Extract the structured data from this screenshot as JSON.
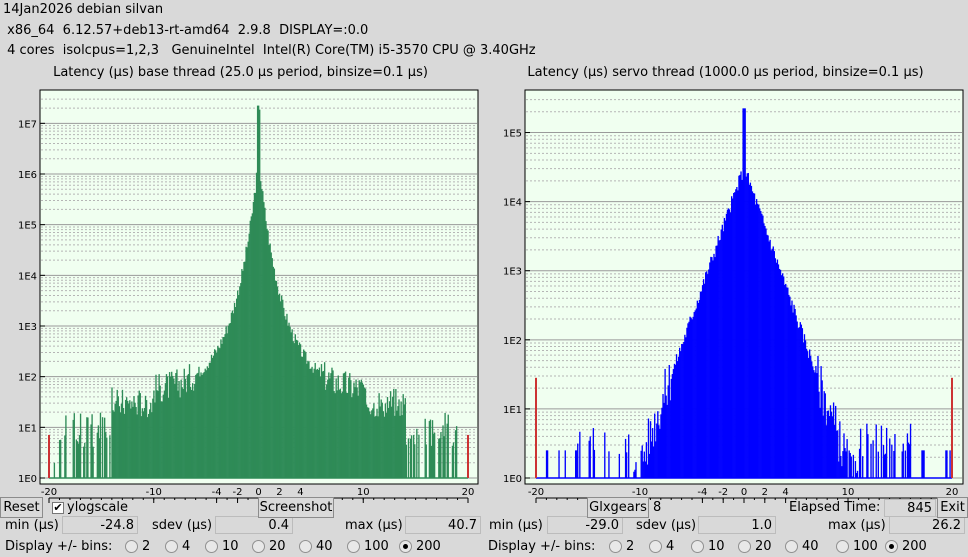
{
  "header": {
    "line1": "14Jan2026 debian silvan",
    "line2": " x86_64  6.12.57+deb13-rt-amd64  2.9.8  DISPLAY=:0.0",
    "line3": " 4 cores  isolcpus=1,2,3   GenuineIntel  Intel(R) Core(TM) i5-3570 CPU @ 3.40GHz"
  },
  "panels": [
    {
      "title": "Latency (µs) base thread (25.0 µs period, binsize=0.1 µs)",
      "min_label": "min (µs)",
      "min_value": "-24.8",
      "sdev_label": "sdev (µs)",
      "sdev_value": "0.4",
      "max_label": "max (µs)",
      "max_value": "40.7",
      "bins_label": "Display +/- bins:",
      "bins": [
        "2",
        "4",
        "10",
        "20",
        "40",
        "100",
        "200"
      ],
      "selected_bins": "200"
    },
    {
      "title": "Latency (µs) servo thread (1000.0 µs period, binsize=0.1 µs)",
      "min_label": "min (µs)",
      "min_value": "-29.0",
      "sdev_label": "sdev (µs)",
      "sdev_value": "1.0",
      "max_label": "max (µs)",
      "max_value": "26.2",
      "bins_label": "Display +/- bins:",
      "bins": [
        "2",
        "4",
        "10",
        "20",
        "40",
        "100",
        "200"
      ],
      "selected_bins": "200"
    }
  ],
  "chart_data": [
    {
      "type": "bar",
      "title": "Latency (µs) base thread (25.0 µs period, binsize=0.1 µs)",
      "x_ticks": [
        "-20",
        "-10",
        "-4",
        "-2",
        "0",
        "2",
        "4",
        "10",
        "20"
      ],
      "x_range": [
        -20,
        20
      ],
      "y_ticks": [
        "1E0",
        "1E1",
        "1E2",
        "1E3",
        "1E4",
        "1E5",
        "1E6",
        "1E7"
      ],
      "y_scale": "log",
      "y_range_log10": [
        0,
        7.5
      ],
      "peak_log10": 7.35,
      "center_log10": 6.3,
      "decay_per_us": 0.43,
      "asymptote_log10": 1.7,
      "edge_x": [
        -20,
        20
      ],
      "bar_color": "#2e8b57",
      "edge_color": "#cc3333",
      "grid": true
    },
    {
      "type": "bar",
      "title": "Latency (µs) servo thread (1000.0 µs period, binsize=0.1 µs)",
      "x_ticks": [
        "-20",
        "-10",
        "-4",
        "-2",
        "0",
        "2",
        "4",
        "10",
        "20"
      ],
      "x_range": [
        -20,
        20
      ],
      "y_ticks": [
        "1E0",
        "1E1",
        "1E2",
        "1E3",
        "1E4",
        "1E5"
      ],
      "y_scale": "log",
      "y_range_log10": [
        0,
        5.5
      ],
      "peak_log10": 5.35,
      "center_log10": 4.5,
      "decay_per_us": 0.45,
      "asymptote_log10": 0,
      "edge_x": [
        -20,
        20
      ],
      "bar_color": "#0000ff",
      "edge_color": "#cc3333",
      "grid": true
    }
  ],
  "toolbar": {
    "reset": "Reset",
    "ylogscale": "ylogscale",
    "ylogscale_checked": "✔",
    "screenshot": "Screenshot",
    "glxgears": "Glxgears",
    "glxgears_count": "8",
    "elapsed_label": "Elapsed Time:",
    "elapsed_value": "845",
    "exit": "Exit"
  }
}
